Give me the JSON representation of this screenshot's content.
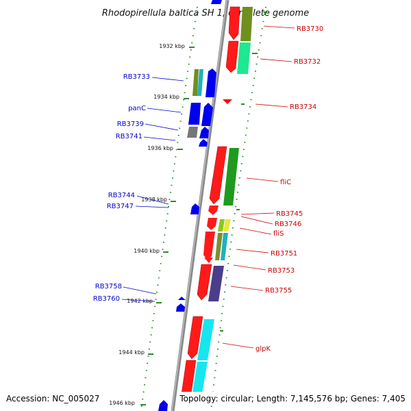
{
  "title": "Rhodopirellula baltica SH 1, complete genome",
  "footer": {
    "accession": "Accession: NC_005027",
    "summary": "Topology: circular; Length: 7,145,576 bp; Genes: 7,405"
  },
  "colors": {
    "reverse_strand_label": "#cc0000",
    "forward_strand_label": "#0000cc",
    "tick": "#2a8a2a",
    "backbone": "#888888"
  },
  "kbp_ticks": [
    "1932 kbp",
    "1934 kbp",
    "1936 kbp",
    "1938 kbp",
    "1940 kbp",
    "1942 kbp",
    "1944 kbp",
    "1946 kbp"
  ],
  "gene_labels": {
    "right": [
      "RB3730",
      "RB3732",
      "RB3734",
      "fliC",
      "RB3745",
      "RB3746",
      "fliS",
      "RB3751",
      "RB3753",
      "RB3755",
      "glpK"
    ],
    "left": [
      "RB3733",
      "panC",
      "RB3739",
      "RB3741",
      "RB3744",
      "RB3747",
      "RB3758",
      "RB3760"
    ]
  }
}
